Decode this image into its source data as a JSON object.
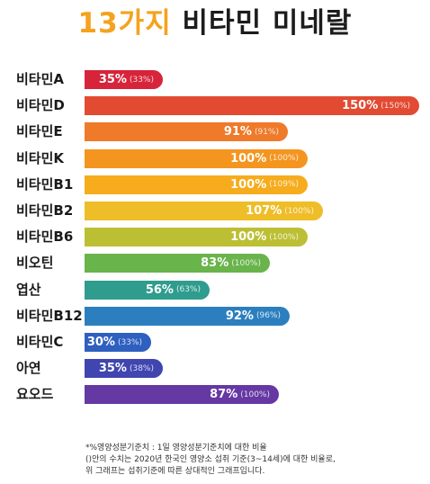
{
  "title": {
    "accent": "13가지",
    "main": "비타민 미네랄"
  },
  "chart_data": {
    "type": "bar",
    "orientation": "horizontal",
    "title": "13가지 비타민 미네랄",
    "categories": [
      "비타민A",
      "비타민D",
      "비타민E",
      "비타민K",
      "비타민B1",
      "비타민B2",
      "비타민B6",
      "비오틴",
      "엽산",
      "비타민B12",
      "비타민C",
      "아연",
      "요오드"
    ],
    "series": [
      {
        "values": [
          35,
          150,
          91,
          100,
          100,
          107,
          100,
          83,
          56,
          92,
          30,
          35,
          87
        ]
      },
      {
        "values": [
          33,
          150,
          91,
          100,
          109,
          100,
          100,
          100,
          63,
          96,
          33,
          38,
          100
        ]
      }
    ],
    "value_labels": [
      "35%",
      "150%",
      "91%",
      "100%",
      "100%",
      "107%",
      "100%",
      "83%",
      "56%",
      "92%",
      "30%",
      "35%",
      "87%"
    ],
    "paren_labels": [
      "(33%)",
      "(150%)",
      "(91%)",
      "(100%)",
      "(109%)",
      "(100%)",
      "(100%)",
      "(100%)",
      "(63%)",
      "(96%)",
      "(33%)",
      "(38%)",
      "(100%)"
    ],
    "colors": [
      "#d7243b",
      "#e24a32",
      "#ef7a2a",
      "#f4951f",
      "#f6ac1d",
      "#eebd28",
      "#bcbf33",
      "#6ab44c",
      "#2f9c8e",
      "#2c7fbf",
      "#2f5fbf",
      "#4045b0",
      "#6538a3"
    ],
    "xlim": [
      0,
      150
    ],
    "grid": false,
    "legend": "none"
  },
  "footnote": [
    "*%영양성분기준치 : 1일 영양성분기준치에 대한 비율",
    "()안의 수치는 2020년 한국인 영양소 섭취 기준(3~14세)에 대한 비율로,",
    "위 그래프는 섭취기준에 따른 상대적인 그래프입니다."
  ]
}
